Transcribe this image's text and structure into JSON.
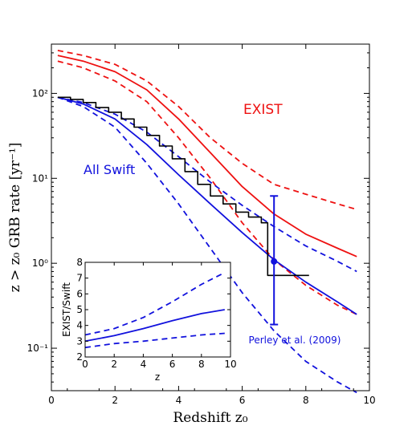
{
  "chart_data": {
    "type": "line",
    "title": "",
    "xlabel": "Redshift z₀",
    "ylabel": "z > z₀ GRB rate [yr⁻¹]",
    "xlim": [
      0,
      10
    ],
    "ylim_log10": [
      -1.5,
      2.58
    ],
    "y_scale": "log",
    "x_ticks": [
      "0",
      "2",
      "4",
      "6",
      "8",
      "10"
    ],
    "x_tick_values": [
      0,
      2,
      4,
      6,
      8,
      10
    ],
    "y_ticks": [
      "10⁻¹",
      "10⁰",
      "10¹",
      "10²"
    ],
    "y_tick_values": [
      0.1,
      1,
      10,
      100
    ],
    "grid": false,
    "colors": {
      "exist": "#ee1111",
      "swift": "#1111dd",
      "observed": "#000000"
    },
    "annotations": [
      {
        "text": "EXIST",
        "color": "#ee1111"
      },
      {
        "text": "All Swift",
        "color": "#1111dd"
      },
      {
        "text": "Perley et al. (2009)",
        "color": "#1111dd"
      }
    ],
    "series": [
      {
        "color": "#ee1111",
        "dash": false,
        "x": [
          0.2,
          1,
          2,
          3,
          4,
          5,
          6,
          7,
          8,
          9,
          9.6
        ],
        "y": [
          280,
          240,
          180,
          110,
          50,
          20,
          8,
          3.8,
          2.2,
          1.5,
          1.2
        ]
      },
      {
        "color": "#ee1111",
        "dash": true,
        "x": [
          0.2,
          1,
          2,
          3,
          4,
          5,
          6,
          7,
          8,
          9,
          9.6
        ],
        "y": [
          320,
          280,
          220,
          140,
          70,
          30,
          15,
          8.5,
          6.5,
          5,
          4.3
        ]
      },
      {
        "color": "#ee1111",
        "dash": true,
        "x": [
          0.2,
          1,
          2,
          3,
          4,
          5,
          6,
          7,
          8,
          9,
          9.6
        ],
        "y": [
          240,
          200,
          140,
          80,
          30,
          10,
          3,
          1.1,
          0.55,
          0.32,
          0.25
        ]
      },
      {
        "color": "#1111dd",
        "dash": false,
        "x": [
          0.2,
          1,
          2,
          3,
          4,
          5,
          6,
          7,
          8,
          9,
          9.6
        ],
        "y": [
          90,
          75,
          50,
          25,
          11,
          5,
          2.3,
          1.1,
          0.6,
          0.35,
          0.25
        ]
      },
      {
        "color": "#1111dd",
        "dash": true,
        "x": [
          0.2,
          1,
          2,
          3,
          4,
          5,
          6,
          7,
          8,
          9,
          9.6
        ],
        "y": [
          90,
          78,
          57,
          35,
          18,
          9,
          4.8,
          2.7,
          1.6,
          1.05,
          0.8
        ]
      },
      {
        "color": "#1111dd",
        "dash": true,
        "x": [
          0.2,
          1,
          2,
          3,
          4,
          5,
          6,
          7,
          8,
          9,
          9.6
        ],
        "y": [
          90,
          70,
          40,
          15,
          5,
          1.5,
          0.45,
          0.16,
          0.07,
          0.04,
          0.03
        ]
      },
      {
        "color": "#000000",
        "dash": false,
        "step": true,
        "x": [
          0.2,
          0.6,
          1.0,
          1.4,
          1.8,
          2.2,
          2.6,
          3.0,
          3.4,
          3.8,
          4.2,
          4.6,
          5.0,
          5.4,
          5.8,
          6.2,
          6.6,
          6.8,
          8.1
        ],
        "y": [
          90,
          85,
          78,
          68,
          60,
          50,
          40,
          32,
          24,
          17,
          12,
          8.5,
          6.2,
          5,
          4,
          3.5,
          3,
          0.72,
          0.72
        ]
      }
    ],
    "errorbar": {
      "color": "#1111dd",
      "x": 7.0,
      "y": 1.05,
      "ylow": 0.19,
      "yhigh": 6.2
    },
    "inset": {
      "xlabel": "z",
      "ylabel": "EXIST/Swift",
      "xlim": [
        0,
        10
      ],
      "ylim": [
        2,
        8
      ],
      "x_ticks": [
        "0",
        "2",
        "4",
        "6",
        "8",
        "10"
      ],
      "x_tick_values": [
        0,
        2,
        4,
        6,
        8,
        10
      ],
      "y_ticks": [
        "2",
        "3",
        "4",
        "5",
        "6",
        "7",
        "8"
      ],
      "y_tick_values": [
        2,
        3,
        4,
        5,
        6,
        7,
        8
      ],
      "series": [
        {
          "dash": false,
          "x": [
            0,
            2,
            4,
            6,
            8,
            9.6
          ],
          "y": [
            3.0,
            3.35,
            3.8,
            4.3,
            4.75,
            5.0
          ]
        },
        {
          "dash": true,
          "x": [
            0,
            2,
            4,
            6,
            8,
            9.6
          ],
          "y": [
            3.4,
            3.8,
            4.5,
            5.5,
            6.6,
            7.35
          ]
        },
        {
          "dash": true,
          "x": [
            0,
            2,
            4,
            6,
            8,
            9.6
          ],
          "y": [
            2.6,
            2.85,
            3.0,
            3.2,
            3.4,
            3.5
          ]
        }
      ]
    }
  }
}
